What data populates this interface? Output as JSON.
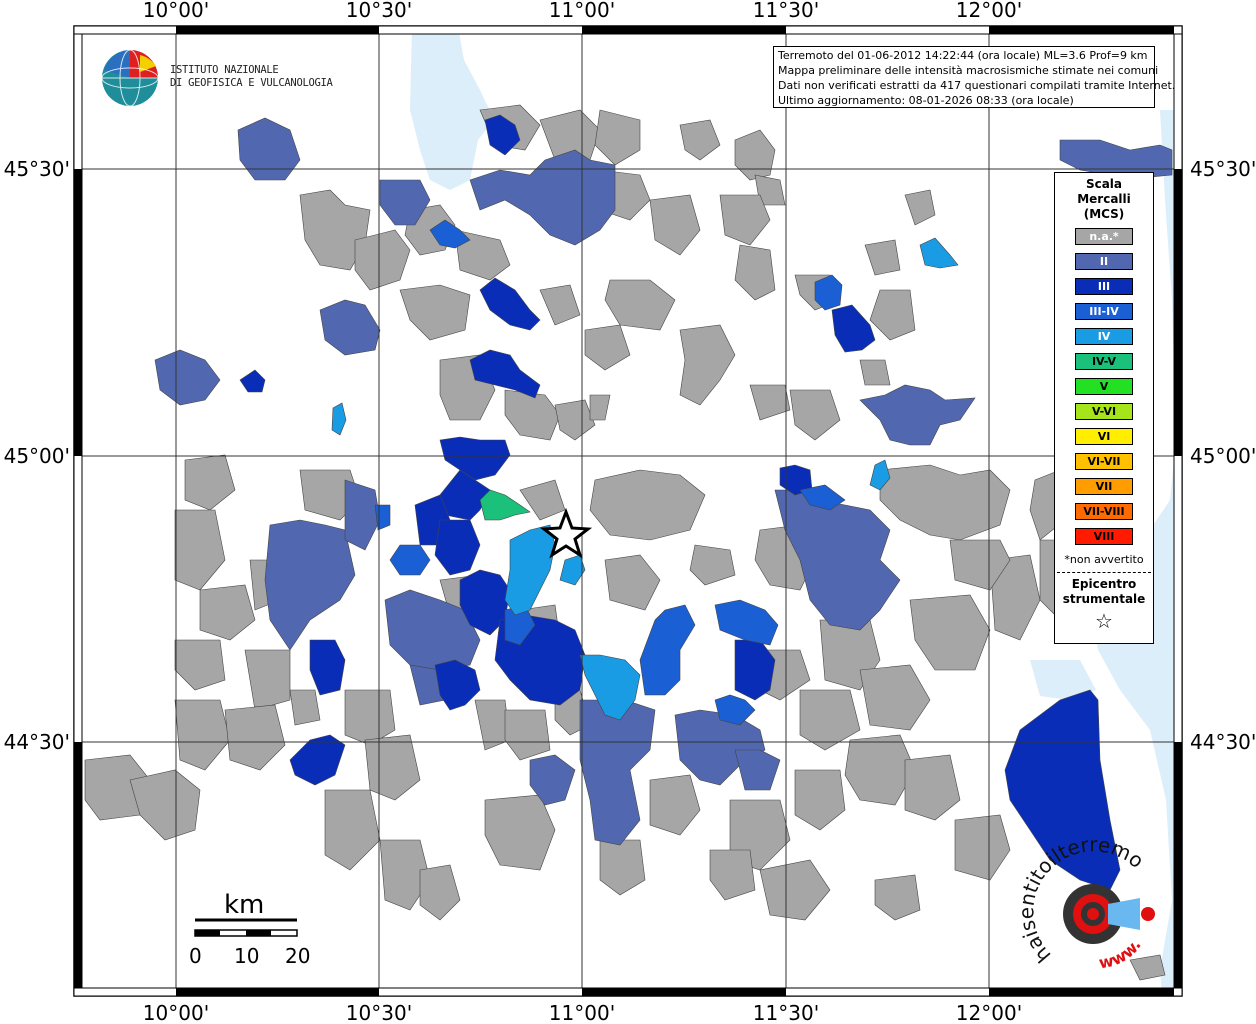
{
  "map": {
    "lon_ticks": [
      "10°00'",
      "10°30'",
      "11°00'",
      "11°30'",
      "12°00'"
    ],
    "lat_ticks": [
      "45°30'",
      "45°00'",
      "44°30'"
    ],
    "header_lines": [
      "Terremoto del 01-06-2012 14:22:44 (ora locale) ML=3.6 Prof=9 km",
      "Mappa preliminare delle intensità macrosismiche stimate nei comuni",
      "Dati non verificati estratti da 417 questionari compilati tramite Internet.",
      "Ultimo aggiornamento: 08-01-2026 08:33 (ora locale)"
    ],
    "institute": {
      "line1": "ISTITUTO NAZIONALE",
      "line2": "DI GEOFISICA E VULCANOLOGIA"
    },
    "epicenter_icon": "star-icon",
    "scale_bar": {
      "unit": "km",
      "labels": [
        "0",
        "10",
        "20"
      ]
    },
    "watermark": {
      "text": "haisentitoilterremoto.it",
      "url": "www."
    }
  },
  "legend": {
    "title": [
      "Scala",
      "Mercalli",
      "(MCS)"
    ],
    "items": [
      {
        "label": "n.a.*",
        "color": "#a6a6a6",
        "text_color": "#ffffff"
      },
      {
        "label": "II",
        "color": "#5168b0",
        "text_color": "#ffffff"
      },
      {
        "label": "III",
        "color": "#0a2db8",
        "text_color": "#ffffff"
      },
      {
        "label": "III-IV",
        "color": "#1a5fd4",
        "text_color": "#ffffff"
      },
      {
        "label": "IV",
        "color": "#1a9ce4",
        "text_color": "#ffffff"
      },
      {
        "label": "IV-V",
        "color": "#1bc07a",
        "text_color": "#000000"
      },
      {
        "label": "V",
        "color": "#22e022",
        "text_color": "#000000"
      },
      {
        "label": "V-VI",
        "color": "#a6e41c",
        "text_color": "#000000"
      },
      {
        "label": "VI",
        "color": "#ffee00",
        "text_color": "#000000"
      },
      {
        "label": "VI-VII",
        "color": "#ffc000",
        "text_color": "#000000"
      },
      {
        "label": "VII",
        "color": "#ff9d00",
        "text_color": "#000000"
      },
      {
        "label": "VII-VIII",
        "color": "#ff6b00",
        "text_color": "#000000"
      },
      {
        "label": "VIII",
        "color": "#ff1a00",
        "text_color": "#000000"
      }
    ],
    "note": "*non avvertito",
    "epicenter_label": [
      "Epicentro",
      "strumentale"
    ],
    "epicenter_symbol": "☆"
  },
  "colors": {
    "water": "#dceefa",
    "gray": "#a6a6a6",
    "ii": "#5168b0",
    "iii": "#0a2db8",
    "iii_iv": "#1a5fd4",
    "iv": "#1a9ce4",
    "iv_v": "#1bc07a"
  }
}
